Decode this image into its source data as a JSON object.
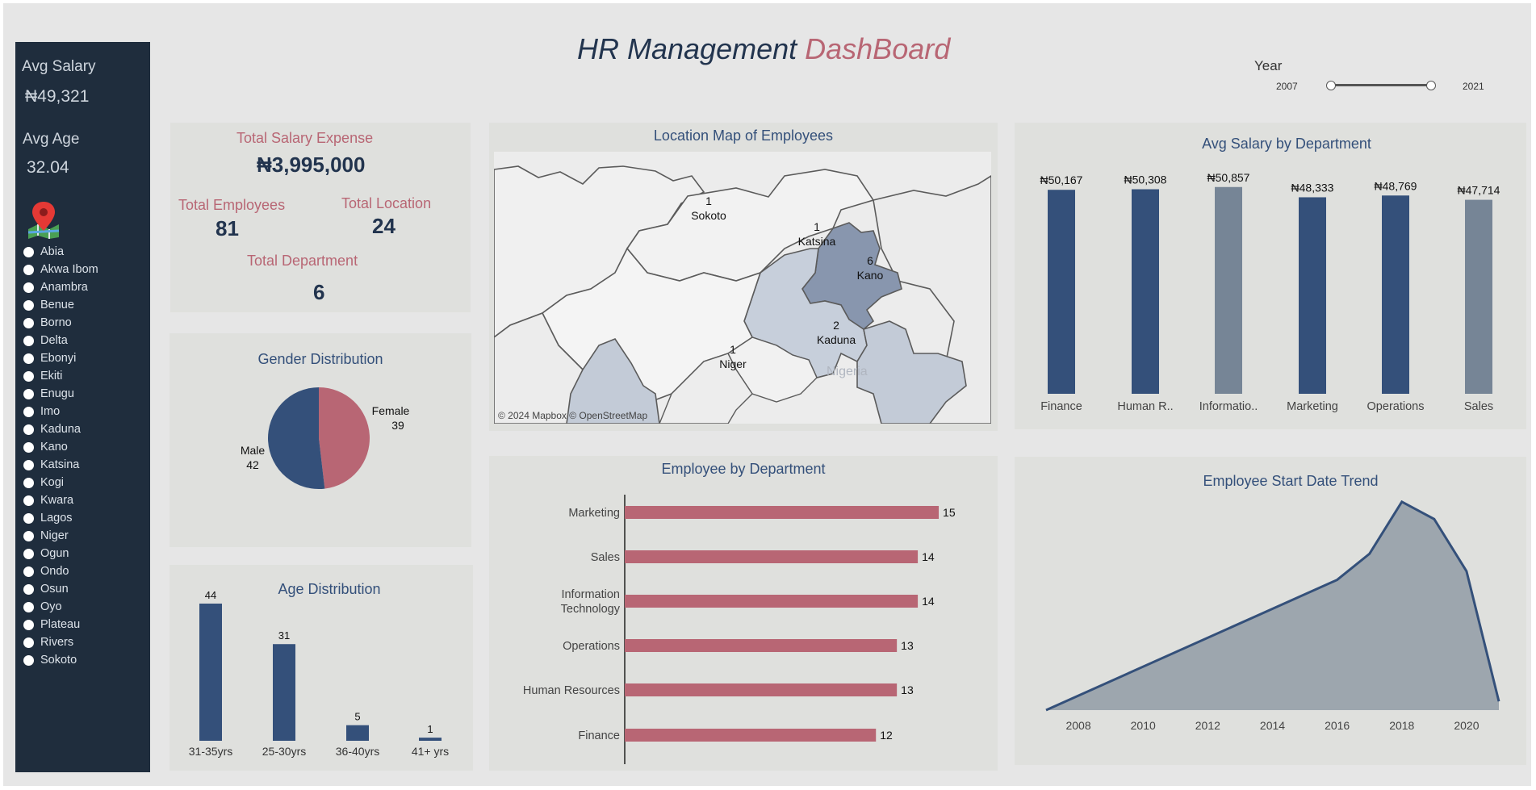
{
  "header": {
    "title_part1": "HR Management",
    "title_part2": "DashBoard"
  },
  "year_filter": {
    "label": "Year",
    "min": "2007",
    "max": "2021"
  },
  "sidebar": {
    "avg_salary_label": "Avg Salary",
    "avg_salary_value": "₦49,321",
    "avg_age_label": "Avg Age",
    "avg_age_value": "32.04",
    "map_icon": "map-pin-icon",
    "states": [
      "Abia",
      "Akwa Ibom",
      "Anambra",
      "Benue",
      "Borno",
      "Delta",
      "Ebonyi",
      "Ekiti",
      "Enugu",
      "Imo",
      "Kaduna",
      "Kano",
      "Katsina",
      "Kogi",
      "Kwara",
      "Lagos",
      "Niger",
      "Ogun",
      "Ondo",
      "Osun",
      "Oyo",
      "Plateau",
      "Rivers",
      "Sokoto"
    ]
  },
  "kpis": {
    "salary_expense_label": "Total Salary Expense",
    "salary_expense_value": "₦3,995,000",
    "employees_label": "Total Employees",
    "employees_value": "81",
    "location_label": "Total Location",
    "location_value": "24",
    "department_label": "Total Department",
    "department_value": "6"
  },
  "colors": {
    "navy": "#34507a",
    "rose": "#b86674",
    "slate": "#768596",
    "dark": "#1f2d3d",
    "panel": "#dfe0dd"
  },
  "chart_data": [
    {
      "id": "gender",
      "type": "pie",
      "title": "Gender Distribution",
      "categories": [
        "Female",
        "Male"
      ],
      "values": [
        39,
        42
      ],
      "colors": [
        "#b86674",
        "#34507a"
      ]
    },
    {
      "id": "age",
      "type": "bar",
      "title": "Age Distribution",
      "categories": [
        "31-35yrs",
        "25-30yrs",
        "36-40yrs",
        "41+ yrs"
      ],
      "values": [
        44,
        31,
        5,
        1
      ]
    },
    {
      "id": "location_map",
      "type": "map",
      "title": "Location Map of Employees",
      "attribution": "© 2024 Mapbox © OpenStreetMap",
      "watermark": "Nigeria",
      "regions": [
        {
          "name": "Sokoto",
          "value": 1
        },
        {
          "name": "Katsina",
          "value": 1
        },
        {
          "name": "Kano",
          "value": 6
        },
        {
          "name": "Kaduna",
          "value": 2
        },
        {
          "name": "Niger",
          "value": 1
        }
      ]
    },
    {
      "id": "dept_count",
      "type": "bar",
      "orientation": "horizontal",
      "title": "Employee by Department",
      "categories": [
        "Marketing",
        "Sales",
        "Information Technology",
        "Operations",
        "Human Resources",
        "Finance"
      ],
      "values": [
        15,
        14,
        14,
        13,
        13,
        12
      ],
      "xlim": [
        0,
        15.5
      ]
    },
    {
      "id": "dept_salary",
      "type": "bar",
      "title": "Avg Salary by Department",
      "categories": [
        "Finance",
        "Human R..",
        "Informatio..",
        "Marketing",
        "Operations",
        "Sales"
      ],
      "values": [
        50167,
        50308,
        50857,
        48333,
        48769,
        47714
      ],
      "labels": [
        "₦50,167",
        "₦50,308",
        "₦50,857",
        "₦48,333",
        "₦48,769",
        "₦47,714"
      ],
      "colors": [
        "#34507a",
        "#34507a",
        "#768596",
        "#34507a",
        "#34507a",
        "#768596"
      ],
      "ylim": [
        0,
        52000
      ]
    },
    {
      "id": "start_trend",
      "type": "area",
      "title": "Employee Start Date Trend",
      "x": [
        2007,
        2016,
        2017,
        2018,
        2019,
        2020,
        2021
      ],
      "y": [
        0,
        15,
        18,
        24,
        22,
        16,
        1
      ],
      "xticks": [
        "2008",
        "2010",
        "2012",
        "2014",
        "2016",
        "2018",
        "2020"
      ],
      "xlim": [
        2007,
        2021
      ],
      "ylim": [
        0,
        25
      ]
    }
  ]
}
